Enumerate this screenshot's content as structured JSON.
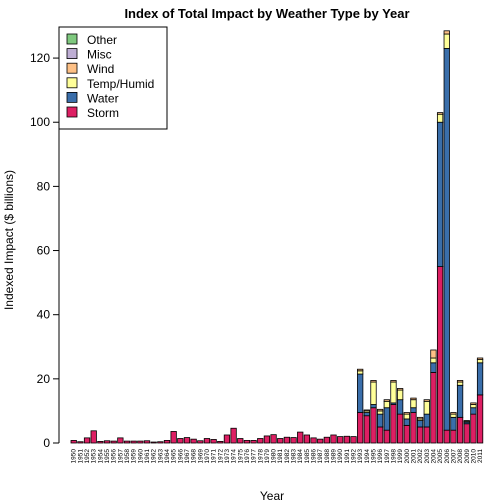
{
  "chart_data": {
    "type": "bar",
    "stacked": true,
    "title": "Index of Total Impact by Weather Type by Year",
    "xlabel": "Year",
    "ylabel": "Indexed Impact ($ billions)",
    "ylim": [
      0,
      130
    ],
    "yticks": [
      0,
      20,
      40,
      60,
      80,
      100,
      120
    ],
    "legend_position": "top-left",
    "grid": false,
    "categories": [
      "1950",
      "1951",
      "1952",
      "1953",
      "1954",
      "1955",
      "1956",
      "1957",
      "1958",
      "1959",
      "1960",
      "1961",
      "1962",
      "1963",
      "1964",
      "1965",
      "1966",
      "1967",
      "1968",
      "1969",
      "1970",
      "1971",
      "1972",
      "1973",
      "1974",
      "1975",
      "1976",
      "1977",
      "1978",
      "1979",
      "1980",
      "1981",
      "1982",
      "1983",
      "1984",
      "1985",
      "1986",
      "1987",
      "1988",
      "1989",
      "1990",
      "1991",
      "1992",
      "1993",
      "1994",
      "1995",
      "1996",
      "1997",
      "1998",
      "1999",
      "2000",
      "2001",
      "2002",
      "2003",
      "2004",
      "2005",
      "2006",
      "2007",
      "2008",
      "2009",
      "2010",
      "2011"
    ],
    "series": [
      {
        "name": "Storm",
        "color": "#DD1F63",
        "values": [
          0.8,
          0.4,
          1.6,
          3.8,
          0.5,
          0.7,
          0.6,
          1.6,
          0.6,
          0.6,
          0.6,
          0.7,
          0.3,
          0.4,
          0.8,
          3.6,
          1.4,
          1.7,
          1.2,
          0.7,
          1.4,
          1.1,
          0.5,
          2.5,
          4.6,
          1.4,
          0.8,
          0.8,
          1.4,
          2.2,
          2.6,
          1.4,
          1.8,
          1.7,
          3.4,
          2.5,
          1.6,
          1.2,
          1.8,
          2.5,
          2.0,
          2.1,
          2.0,
          9.5,
          8.5,
          11.0,
          5.0,
          4.0,
          12.0,
          9.0,
          5.5,
          9.5,
          5.0,
          5.0,
          22.0,
          55.0,
          4.0,
          4.0,
          8.0,
          6.0,
          9.0,
          15.0
        ]
      },
      {
        "name": "Water",
        "color": "#3A6EAA",
        "values": [
          0,
          0,
          0,
          0,
          0,
          0,
          0,
          0,
          0,
          0,
          0,
          0,
          0,
          0,
          0,
          0,
          0,
          0,
          0,
          0,
          0,
          0,
          0,
          0,
          0,
          0,
          0,
          0,
          0,
          0,
          0,
          0,
          0,
          0,
          0,
          0,
          0,
          0,
          0,
          0,
          0,
          0,
          0,
          12.0,
          1.0,
          1.0,
          4.0,
          7.0,
          0.5,
          4.5,
          2.0,
          1.5,
          2.0,
          4.0,
          3.0,
          45.0,
          119.0,
          4.0,
          10.0,
          0.5,
          2.0,
          10.0
        ]
      },
      {
        "name": "Temp/Humid",
        "color": "#FFFF99",
        "values": [
          0,
          0,
          0,
          0,
          0,
          0,
          0,
          0,
          0,
          0,
          0,
          0,
          0,
          0,
          0,
          0,
          0,
          0,
          0,
          0,
          0,
          0,
          0,
          0,
          0,
          0,
          0,
          0,
          0,
          0,
          0,
          0,
          0,
          0,
          0,
          0,
          0,
          0,
          0,
          0,
          0,
          0,
          0,
          1.0,
          0.5,
          7.0,
          1.0,
          2.0,
          6.5,
          3.0,
          1.5,
          2.5,
          0.5,
          4.0,
          1.5,
          2.5,
          4.5,
          1.0,
          1.0,
          0.3,
          1.0,
          1.0
        ]
      },
      {
        "name": "Wind",
        "color": "#FDC086",
        "values": [
          0,
          0,
          0,
          0,
          0,
          0,
          0,
          0,
          0,
          0,
          0,
          0,
          0,
          0,
          0,
          0,
          0,
          0,
          0,
          0,
          0,
          0,
          0,
          0,
          0,
          0,
          0,
          0,
          0,
          0,
          0,
          0,
          0,
          0,
          0,
          0,
          0,
          0,
          0,
          0,
          0,
          0,
          0,
          0.5,
          0.3,
          0.5,
          0.5,
          0.5,
          0.5,
          0.5,
          0.5,
          0.5,
          0.5,
          0.5,
          2.5,
          0.5,
          1.0,
          0.5,
          0.5,
          0.2,
          0.5,
          0.5
        ]
      },
      {
        "name": "Misc",
        "color": "#BEAED4",
        "values": [
          0,
          0,
          0,
          0,
          0,
          0,
          0,
          0,
          0,
          0,
          0,
          0,
          0,
          0,
          0,
          0,
          0,
          0,
          0,
          0,
          0,
          0,
          0,
          0,
          0,
          0,
          0,
          0,
          0,
          0,
          0,
          0,
          0,
          0,
          0,
          0,
          0,
          0,
          0,
          0,
          0,
          0,
          0,
          0,
          0,
          0,
          0,
          0,
          0,
          0,
          0,
          0,
          0,
          0,
          0,
          0,
          0,
          0,
          0,
          0,
          0,
          0
        ]
      },
      {
        "name": "Other",
        "color": "#7FC97F",
        "values": [
          0,
          0,
          0,
          0,
          0,
          0,
          0,
          0,
          0,
          0,
          0,
          0,
          0,
          0,
          0,
          0,
          0,
          0,
          0,
          0,
          0,
          0,
          0,
          0,
          0,
          0,
          0,
          0,
          0,
          0,
          0,
          0,
          0,
          0,
          0,
          0,
          0,
          0,
          0,
          0,
          0,
          0,
          0,
          0,
          0,
          0,
          0,
          0,
          0,
          0,
          0,
          0,
          0,
          0,
          0,
          0,
          0,
          0,
          0,
          0,
          0,
          0
        ]
      }
    ],
    "legend_order": [
      "Other",
      "Misc",
      "Wind",
      "Temp/Humid",
      "Water",
      "Storm"
    ]
  }
}
